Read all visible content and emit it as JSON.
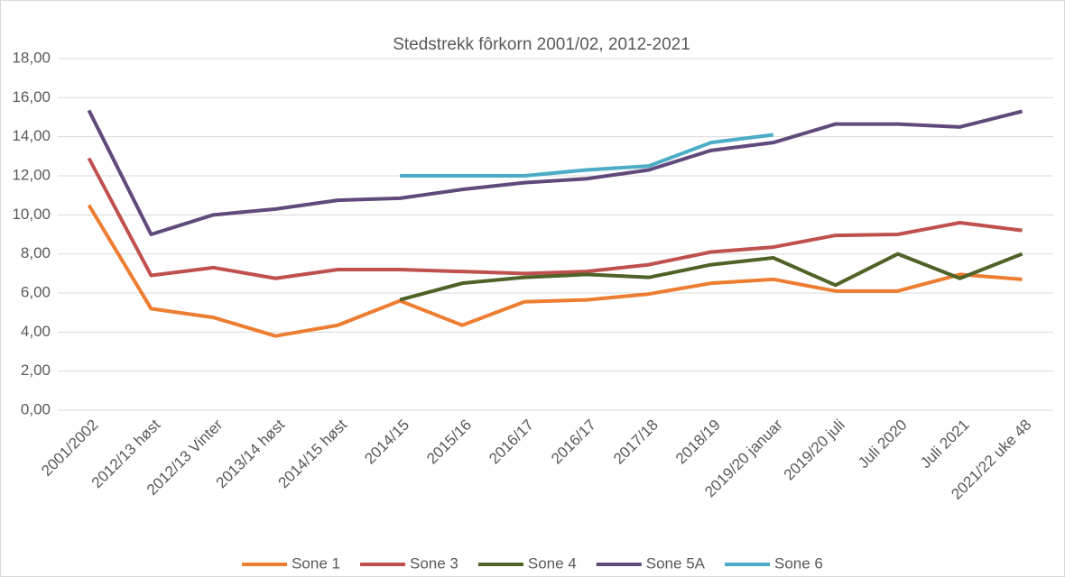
{
  "chart_data": {
    "type": "line",
    "title": "Stedstrekk fôrkorn 2001/02, 2012-2021",
    "categories": [
      "2001/2002",
      "2012/13 høst",
      "2012/13 Vinter",
      "2013/14 høst",
      "2014/15 høst",
      "2014/15",
      "2015/16",
      "2016/17",
      "2016/17",
      "2017/18",
      "2018/19",
      "2019/20 januar",
      "2019/20 juli",
      "Juli 2020",
      "Juli 2021",
      "2021/22 uke 48"
    ],
    "series": [
      {
        "name": "Sone 1",
        "color": "#ED7D31",
        "values": [
          10.5,
          5.2,
          4.75,
          3.8,
          4.35,
          5.6,
          4.35,
          5.55,
          5.65,
          5.95,
          6.5,
          6.7,
          6.1,
          6.1,
          6.95,
          6.7
        ]
      },
      {
        "name": "Sone 3",
        "color": "#C0504D",
        "values": [
          12.9,
          6.9,
          7.3,
          6.75,
          7.2,
          7.2,
          7.1,
          7.0,
          7.1,
          7.45,
          8.1,
          8.35,
          8.95,
          9.0,
          9.6,
          9.2
        ]
      },
      {
        "name": "Sone 4",
        "color": "#4F6228",
        "values": [
          null,
          null,
          null,
          null,
          null,
          5.65,
          6.5,
          6.8,
          6.95,
          6.8,
          7.45,
          7.8,
          6.4,
          8.0,
          6.75,
          8.0
        ]
      },
      {
        "name": "Sone 5A",
        "color": "#604A7B",
        "values": [
          15.35,
          9.0,
          10.0,
          10.3,
          10.75,
          10.85,
          11.3,
          11.65,
          11.85,
          12.3,
          13.3,
          13.7,
          14.65,
          14.65,
          14.5,
          15.3
        ]
      },
      {
        "name": "Sone 6",
        "color": "#4BACC6",
        "values": [
          null,
          null,
          null,
          null,
          null,
          12.0,
          12.0,
          12.0,
          12.3,
          12.5,
          13.7,
          14.1,
          null,
          null,
          null,
          null
        ]
      }
    ],
    "ylim": [
      0,
      18
    ],
    "yticks": [
      {
        "value": 0,
        "label": "0,00"
      },
      {
        "value": 2,
        "label": "2,00"
      },
      {
        "value": 4,
        "label": "4,00"
      },
      {
        "value": 6,
        "label": "6,00"
      },
      {
        "value": 8,
        "label": "8,00"
      },
      {
        "value": 10,
        "label": "10,00"
      },
      {
        "value": 12,
        "label": "12,00"
      },
      {
        "value": 14,
        "label": "14,00"
      },
      {
        "value": 16,
        "label": "16,00"
      },
      {
        "value": 18,
        "label": "18,00"
      }
    ],
    "grid": true,
    "legend": "bottom"
  }
}
